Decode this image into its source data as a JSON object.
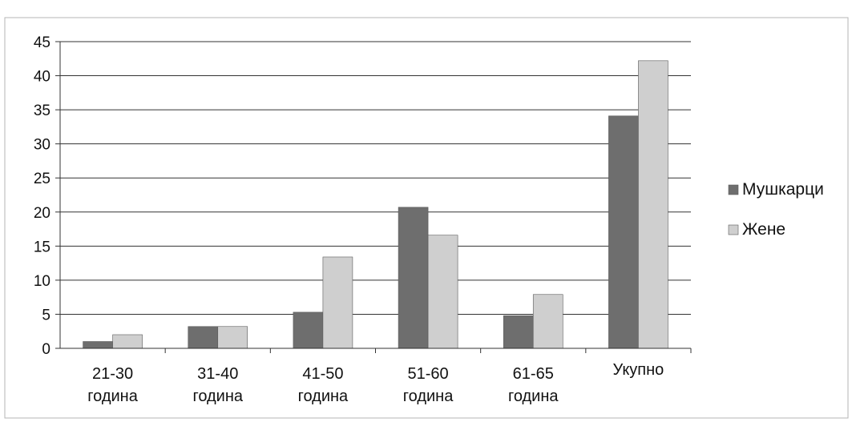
{
  "chart_data": {
    "type": "bar",
    "categories": [
      [
        "21-30",
        "година"
      ],
      [
        "31-40",
        "година"
      ],
      [
        "41-50",
        "година"
      ],
      [
        "51-60",
        "година"
      ],
      [
        "61-65",
        "година"
      ],
      [
        "Укупно"
      ]
    ],
    "series": [
      {
        "name": "Мушкарци",
        "values": [
          1,
          3.2,
          5.3,
          20.7,
          4.8,
          34.1
        ],
        "color": "#6e6e6e"
      },
      {
        "name": "Жене",
        "values": [
          2,
          3.2,
          13.4,
          16.6,
          7.9,
          42.2
        ],
        "color": "#cfcfcf"
      }
    ],
    "y_ticks": [
      0,
      5,
      10,
      15,
      20,
      25,
      30,
      35,
      40,
      45
    ],
    "ylim": [
      0,
      45
    ],
    "grid": true,
    "legend_position": "right"
  }
}
